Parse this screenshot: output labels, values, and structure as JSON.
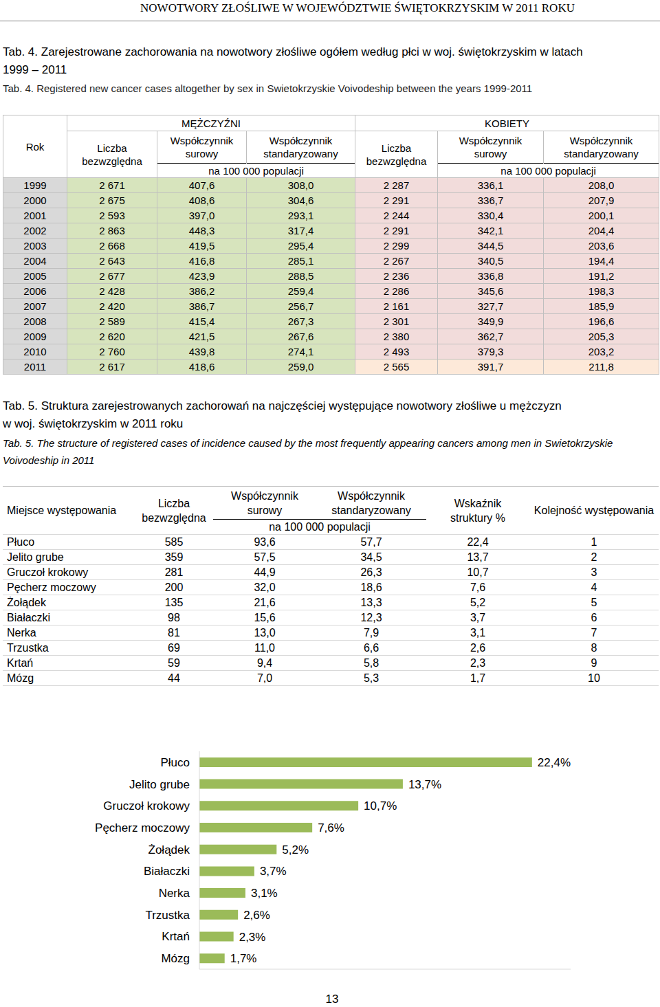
{
  "header": "NOWOTWORY ZŁOŚLIWE W WOJEWÓDZTWIE ŚWIĘTOKRZYSKIM W 2011 ROKU",
  "table4": {
    "title_pl": [
      "Tab. 4. Zarejestrowane zachorowania na nowotwory złośliwe ogółem według płci w woj. świętokrzyskim w latach",
      "1999 – 2011"
    ],
    "title_en": [
      "Tab. 4.  Registered new cancer cases altogether by sex in Swietokrzyskie Voivodeship  between the years 1999-2011"
    ],
    "year_header": "Rok",
    "groups": [
      {
        "label": "MĘŻCZYŹNI",
        "columns": [
          [
            "Liczba",
            "bezwzględna"
          ],
          [
            "Współczynnik",
            "surowy"
          ],
          [
            "Współczynnik",
            "standaryzowany"
          ]
        ],
        "unit": "na 100 000 populacji"
      },
      {
        "label": "KOBIETY",
        "columns": [
          [
            "Liczba",
            "bezwzględna"
          ],
          [
            "Współczynnik",
            "surowy"
          ],
          [
            "Współczynnik",
            "standaryzowany"
          ]
        ],
        "unit": "na 100 000 populacji"
      }
    ],
    "rows": [
      [
        "1999",
        "2 671",
        "407,6",
        "308,0",
        "2 287",
        "336,1",
        "208,0"
      ],
      [
        "2000",
        "2 675",
        "408,6",
        "304,6",
        "2 291",
        "336,7",
        "207,9"
      ],
      [
        "2001",
        "2 593",
        "397,0",
        "293,1",
        "2 244",
        "330,4",
        "200,1"
      ],
      [
        "2002",
        "2 863",
        "448,3",
        "317,4",
        "2 291",
        "342,1",
        "204,4"
      ],
      [
        "2003",
        "2 668",
        "419,5",
        "295,4",
        "2 299",
        "344,5",
        "203,6"
      ],
      [
        "2004",
        "2 643",
        "416,8",
        "285,1",
        "2 267",
        "340,5",
        "194,4"
      ],
      [
        "2005",
        "2 677",
        "423,9",
        "288,5",
        "2 236",
        "336,8",
        "191,2"
      ],
      [
        "2006",
        "2 428",
        "386,2",
        "259,4",
        "2 286",
        "345,6",
        "198,3"
      ],
      [
        "2007",
        "2 420",
        "386,7",
        "256,7",
        "2 161",
        "327,7",
        "185,9"
      ],
      [
        "2008",
        "2 589",
        "415,4",
        "267,3",
        "2 301",
        "349,9",
        "196,6"
      ],
      [
        "2009",
        "2 620",
        "421,5",
        "267,6",
        "2 380",
        "362,7",
        "205,3"
      ],
      [
        "2010",
        "2 760",
        "439,8",
        "274,1",
        "2 493",
        "379,3",
        "203,2"
      ],
      [
        "2011",
        "2 617",
        "418,6",
        "259,0",
        "2 565",
        "391,7",
        "211,8"
      ]
    ]
  },
  "table5": {
    "title_pl": [
      "Tab. 5. Struktura zarejestrowanych zachorowań na najczęściej występujące nowotwory złośliwe u mężczyzn",
      "w woj. świętokrzyskim w 2011 roku"
    ],
    "title_en": [
      "Tab. 5.  The structure of registered cases of incidence caused by the most frequently appearing cancers among men in Swietokrzyskie",
      "Voivodeship in 2011"
    ],
    "columns": [
      [
        "Miejsce występowania"
      ],
      [
        "Liczba",
        "bezwzględna"
      ],
      [
        "Współczynnik",
        "surowy"
      ],
      [
        "Współczynnik",
        "standaryzowany"
      ],
      [
        "Wskaźnik",
        "struktury %"
      ],
      [
        "Kolejność występowania"
      ]
    ],
    "unit": "na 100 000 populacji",
    "rows": [
      [
        "Płuco",
        "585",
        "93,6",
        "57,7",
        "22,4",
        "1"
      ],
      [
        "Jelito grube",
        "359",
        "57,5",
        "34,5",
        "13,7",
        "2"
      ],
      [
        "Gruczoł krokowy",
        "281",
        "44,9",
        "26,3",
        "10,7",
        "3"
      ],
      [
        "Pęcherz moczowy",
        "200",
        "32,0",
        "18,6",
        "7,6",
        "4"
      ],
      [
        "Żołądek",
        "135",
        "21,6",
        "13,3",
        "5,2",
        "5"
      ],
      [
        "Białaczki",
        "98",
        "15,6",
        "12,3",
        "3,7",
        "6"
      ],
      [
        "Nerka",
        "81",
        "13,0",
        "7,9",
        "3,1",
        "7"
      ],
      [
        "Trzustka",
        "69",
        "11,0",
        "6,6",
        "2,6",
        "8"
      ],
      [
        "Krtań",
        "59",
        "9,4",
        "5,8",
        "2,3",
        "9"
      ],
      [
        "Mózg",
        "44",
        "7,0",
        "5,3",
        "1,7",
        "10"
      ]
    ]
  },
  "chart_data": {
    "type": "bar",
    "orientation": "horizontal",
    "categories": [
      "Płuco",
      "Jelito grube",
      "Gruczoł krokowy",
      "Pęcherz moczowy",
      "Żołądek",
      "Białaczki",
      "Nerka",
      "Trzustka",
      "Krtań",
      "Mózg"
    ],
    "values": [
      22.4,
      13.7,
      10.7,
      7.6,
      5.2,
      3.7,
      3.1,
      2.6,
      2.3,
      1.7
    ],
    "value_labels": [
      "22,4%",
      "13,7%",
      "10,7%",
      "7,6%",
      "5,2%",
      "3,7%",
      "3,1%",
      "2,6%",
      "2,3%",
      "1,7%"
    ],
    "xlim": [
      0,
      25
    ],
    "data_labels": true,
    "tick_labels": "y",
    "color": "#9bbb59"
  },
  "page_number": "13"
}
